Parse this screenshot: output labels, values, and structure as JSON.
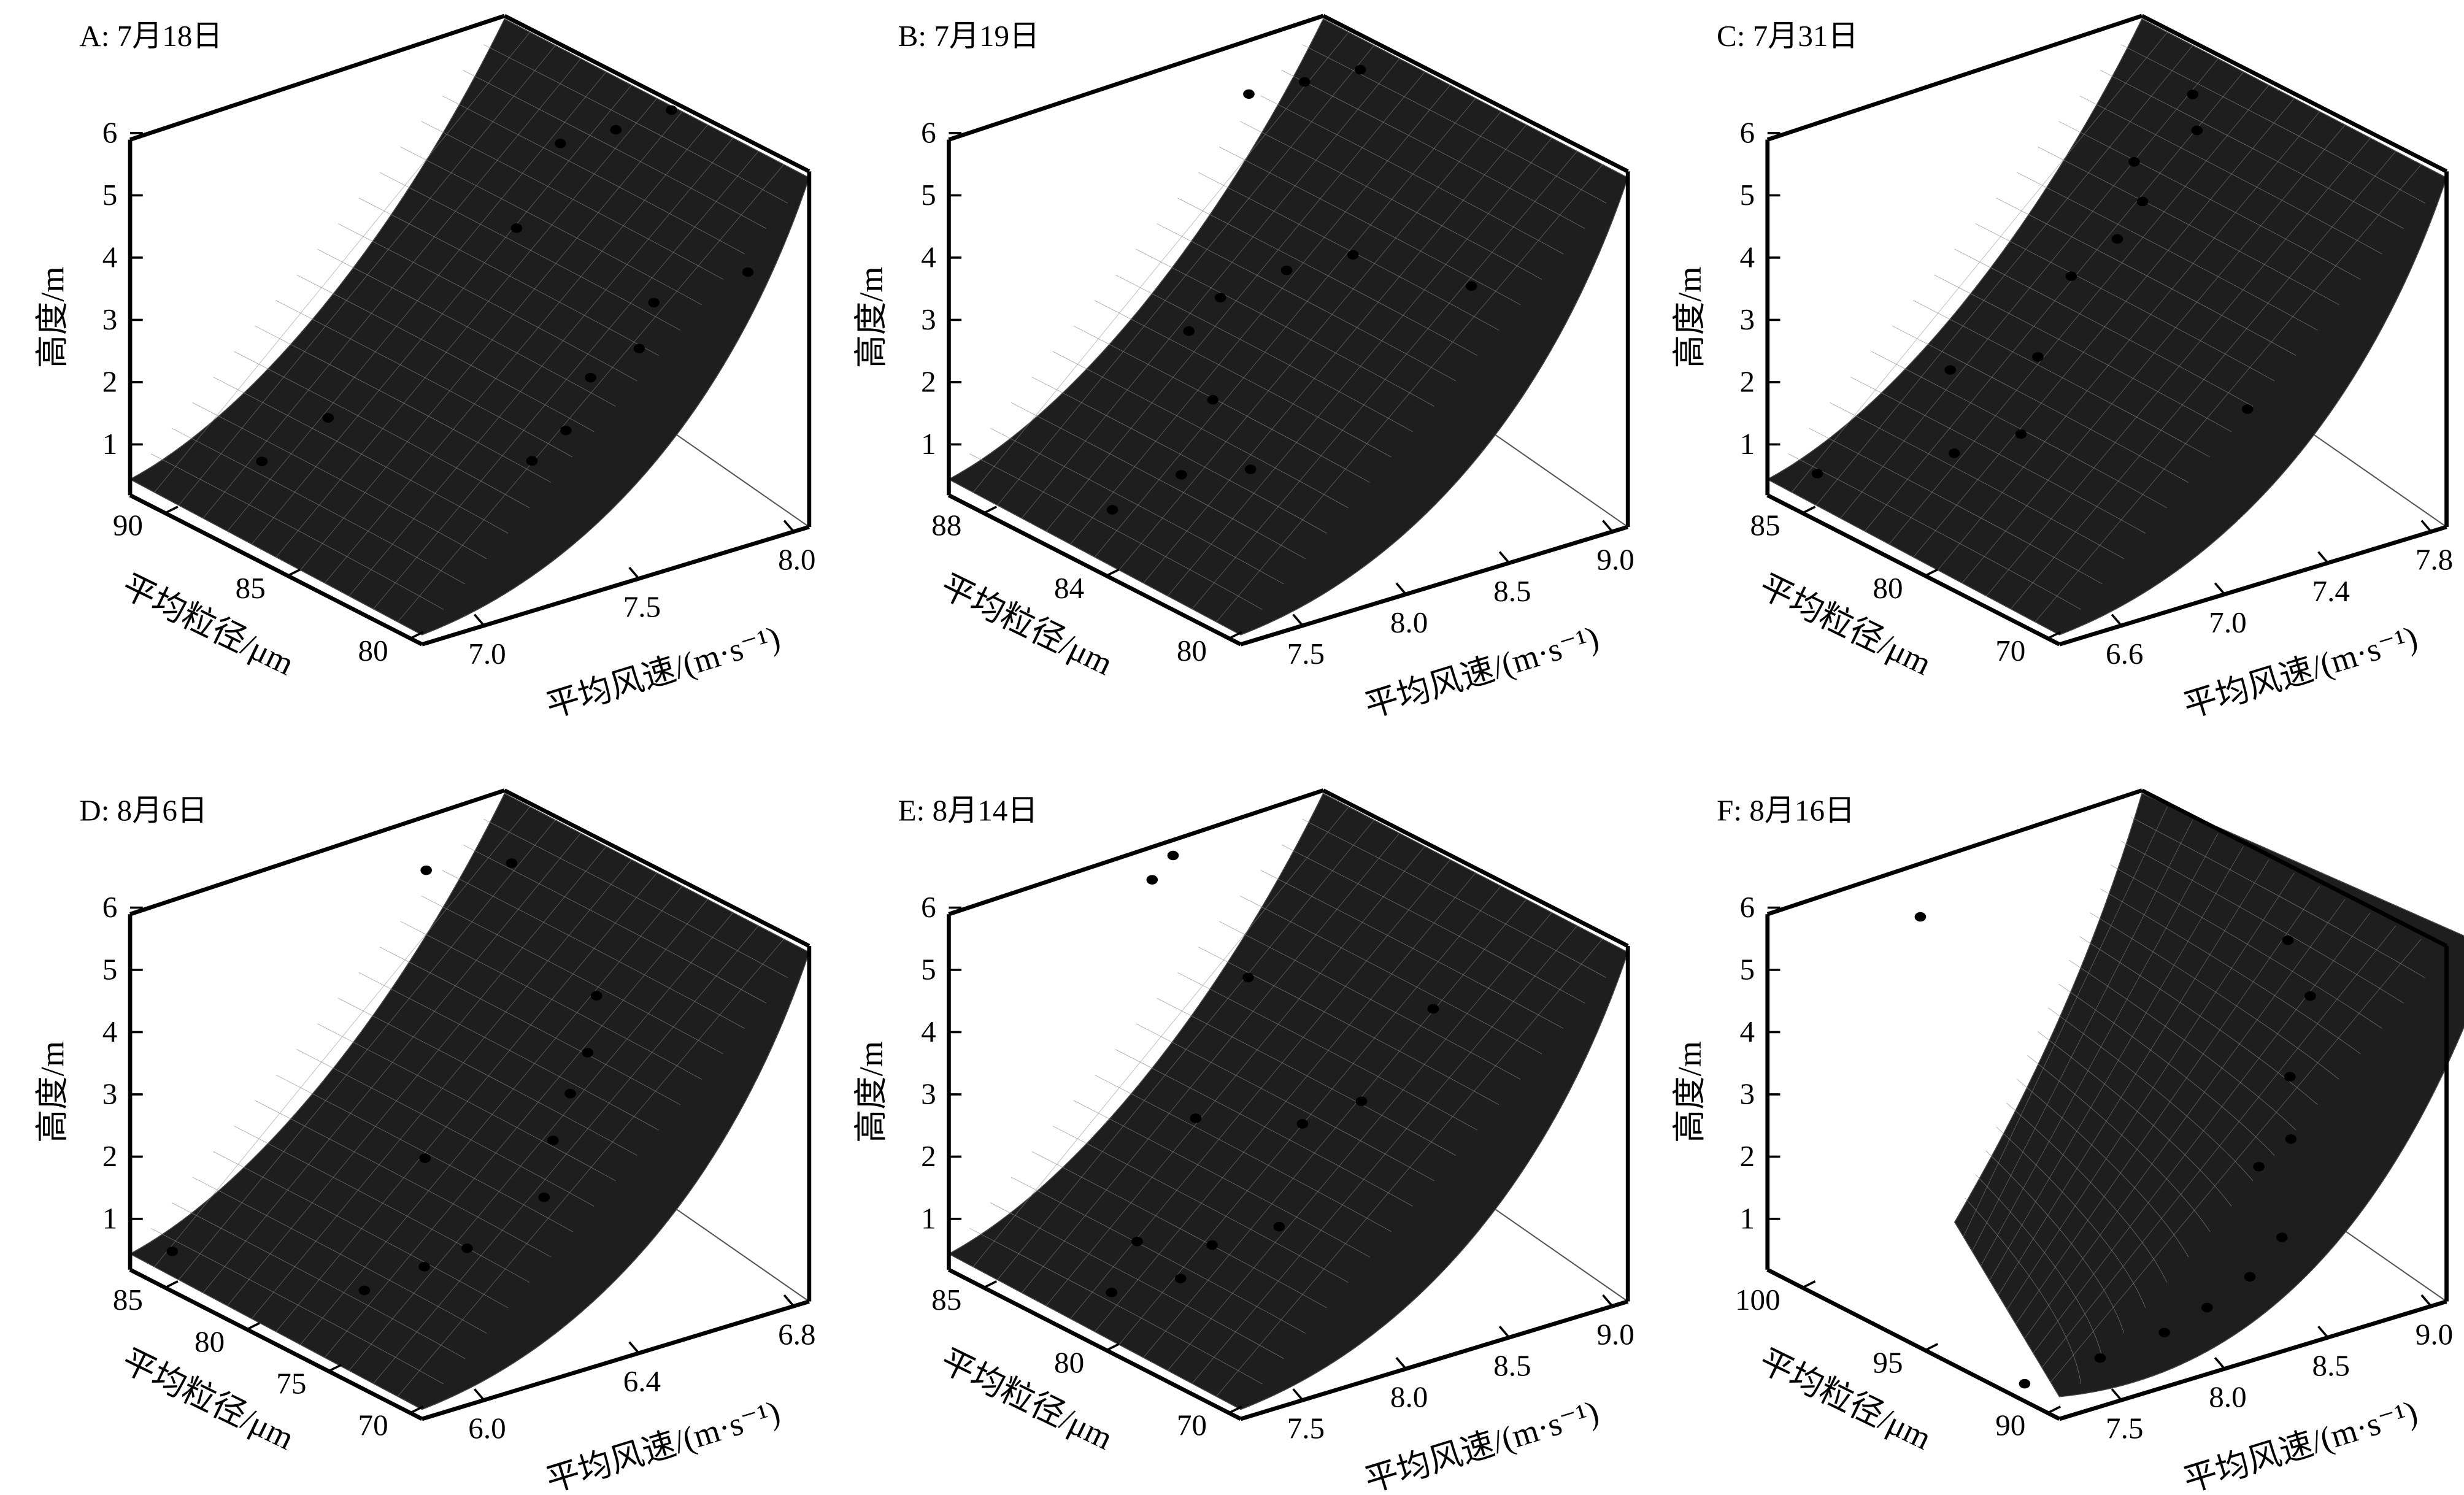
{
  "chart_data": [
    {
      "type": "surface3d",
      "title": "A: 7月18日",
      "zlabel": "高度/m",
      "ylabel": "平均粒径/μm",
      "xlabel": "平均风速/(m·s⁻¹)",
      "z_ticks": [
        "1",
        "2",
        "3",
        "4",
        "5",
        "6"
      ],
      "y_ticks": [
        "90",
        "85",
        "80"
      ],
      "x_ticks": [
        "7.0",
        "7.5",
        "8.0"
      ],
      "zlim": [
        0.3,
        6.3
      ],
      "points": [
        {
          "x": 7.1,
          "y": 89.0,
          "z": 0.8
        },
        {
          "x": 7.25,
          "y": 88.0,
          "z": 1.5
        },
        {
          "x": 7.65,
          "y": 84.2,
          "z": 0.9
        },
        {
          "x": 7.75,
          "y": 84.0,
          "z": 1.3
        },
        {
          "x": 7.85,
          "y": 84.2,
          "z": 2.0
        },
        {
          "x": 7.7,
          "y": 85.5,
          "z": 4.5
        },
        {
          "x": 7.85,
          "y": 85.5,
          "z": 5.7
        },
        {
          "x": 8.0,
          "y": 84.0,
          "z": 2.3
        },
        {
          "x": 8.05,
          "y": 84.0,
          "z": 3.0
        },
        {
          "x": 8.0,
          "y": 85.0,
          "z": 5.8
        },
        {
          "x": 8.15,
          "y": 84.5,
          "z": 6.0
        },
        {
          "x": 8.25,
          "y": 82.5,
          "z": 3.5
        }
      ]
    },
    {
      "type": "surface3d",
      "title": "B: 7月19日",
      "zlabel": "高度/m",
      "ylabel": "平均粒径/μm",
      "xlabel": "平均风速/(m·s⁻¹)",
      "z_ticks": [
        "1",
        "2",
        "3",
        "4",
        "5",
        "6"
      ],
      "y_ticks": [
        "88",
        "84",
        "80"
      ],
      "x_ticks": [
        "7.5",
        "8.0",
        "8.5",
        "9.0"
      ],
      "zlim": [
        0.3,
        6.3
      ],
      "points": [
        {
          "x": 7.7,
          "y": 86.0,
          "z": 0.3
        },
        {
          "x": 7.9,
          "y": 85.0,
          "z": 0.9
        },
        {
          "x": 8.1,
          "y": 84.0,
          "z": 1.0
        },
        {
          "x": 8.05,
          "y": 85.0,
          "z": 2.0
        },
        {
          "x": 8.0,
          "y": 85.5,
          "z": 3.1
        },
        {
          "x": 8.15,
          "y": 85.5,
          "z": 3.5
        },
        {
          "x": 8.4,
          "y": 85.0,
          "z": 3.8
        },
        {
          "x": 8.65,
          "y": 84.5,
          "z": 3.9
        },
        {
          "x": 8.95,
          "y": 82.5,
          "z": 3.5
        },
        {
          "x": 8.35,
          "y": 86.0,
          "z": 6.6
        },
        {
          "x": 8.55,
          "y": 85.5,
          "z": 6.7
        },
        {
          "x": 8.75,
          "y": 85.0,
          "z": 6.8
        }
      ]
    },
    {
      "type": "surface3d",
      "title": "C: 7月31日",
      "zlabel": "高度/m",
      "ylabel": "平均粒径/μm",
      "xlabel": "平均风速/(m·s⁻¹)",
      "z_ticks": [
        "1",
        "2",
        "3",
        "4",
        "5",
        "6"
      ],
      "y_ticks": [
        "85",
        "80",
        "70"
      ],
      "x_ticks": [
        "6.6",
        "7.0",
        "7.4",
        "7.8"
      ],
      "zlim": [
        0.3,
        6.3
      ],
      "points": [
        {
          "x": 6.6,
          "y": 86.0,
          "z": 0.4
        },
        {
          "x": 6.95,
          "y": 83.0,
          "z": 0.7
        },
        {
          "x": 7.15,
          "y": 82.0,
          "z": 0.9
        },
        {
          "x": 7.0,
          "y": 84.0,
          "z": 1.9
        },
        {
          "x": 7.25,
          "y": 82.5,
          "z": 2.0
        },
        {
          "x": 7.35,
          "y": 82.0,
          "z": 3.3
        },
        {
          "x": 7.5,
          "y": 81.5,
          "z": 3.8
        },
        {
          "x": 7.6,
          "y": 81.5,
          "z": 4.3
        },
        {
          "x": 7.6,
          "y": 82.0,
          "z": 4.9
        },
        {
          "x": 7.65,
          "y": 76.0,
          "z": 1.5
        },
        {
          "x": 7.85,
          "y": 82.0,
          "z": 5.1
        },
        {
          "x": 7.9,
          "y": 83.0,
          "z": 5.5
        }
      ]
    },
    {
      "type": "surface3d",
      "title": "D: 8月6日",
      "zlabel": "高度/m",
      "ylabel": "平均粒径/μm",
      "xlabel": "平均风速/(m·s⁻¹)",
      "z_ticks": [
        "1",
        "2",
        "3",
        "4",
        "5",
        "6"
      ],
      "y_ticks": [
        "85",
        "80",
        "75",
        "70"
      ],
      "x_ticks": [
        "6.0",
        "6.4",
        "6.8"
      ],
      "zlim": [
        0.3,
        6.3
      ],
      "points": [
        {
          "x": 5.9,
          "y": 85.5,
          "z": 0.5
        },
        {
          "x": 6.15,
          "y": 79.0,
          "z": 0.3
        },
        {
          "x": 6.3,
          "y": 78.5,
          "z": 0.5
        },
        {
          "x": 6.4,
          "y": 78.0,
          "z": 0.7
        },
        {
          "x": 6.35,
          "y": 79.5,
          "z": 2.1
        },
        {
          "x": 6.55,
          "y": 76.5,
          "z": 1.5
        },
        {
          "x": 6.6,
          "y": 77.0,
          "z": 2.3
        },
        {
          "x": 6.65,
          "y": 77.0,
          "z": 3.0
        },
        {
          "x": 6.7,
          "y": 77.0,
          "z": 3.6
        },
        {
          "x": 6.75,
          "y": 77.5,
          "z": 4.4
        },
        {
          "x": 6.45,
          "y": 81.5,
          "z": 6.5
        },
        {
          "x": 6.65,
          "y": 80.5,
          "z": 6.4
        }
      ]
    },
    {
      "type": "surface3d",
      "title": "E: 8月14日",
      "zlabel": "高度/m",
      "ylabel": "平均粒径/μm",
      "xlabel": "平均风速/(m·s⁻¹)",
      "z_ticks": [
        "1",
        "2",
        "3",
        "4",
        "5",
        "6"
      ],
      "y_ticks": [
        "85",
        "80",
        "70"
      ],
      "x_ticks": [
        "7.5",
        "8.0",
        "8.5",
        "9.0"
      ],
      "zlim": [
        0.3,
        6.3
      ],
      "points": [
        {
          "x": 7.65,
          "y": 80.5,
          "z": 0.3
        },
        {
          "x": 7.9,
          "y": 79.5,
          "z": 0.4
        },
        {
          "x": 7.85,
          "y": 81.5,
          "z": 0.8
        },
        {
          "x": 8.05,
          "y": 79.5,
          "z": 0.8
        },
        {
          "x": 8.25,
          "y": 78.0,
          "z": 1.1
        },
        {
          "x": 8.05,
          "y": 80.5,
          "z": 2.8
        },
        {
          "x": 8.4,
          "y": 78.5,
          "z": 2.6
        },
        {
          "x": 8.6,
          "y": 77.5,
          "z": 2.9
        },
        {
          "x": 8.9,
          "y": 77.0,
          "z": 4.2
        },
        {
          "x": 8.3,
          "y": 80.5,
          "z": 4.9
        },
        {
          "x": 8.0,
          "y": 82.5,
          "z": 6.6
        },
        {
          "x": 8.1,
          "y": 82.5,
          "z": 6.9
        }
      ]
    },
    {
      "type": "surface3d",
      "title": "F: 8月16日",
      "zlabel": "高度/m",
      "ylabel": "平均粒径/μm",
      "xlabel": "平均风速/(m·s⁻¹)",
      "z_ticks": [
        "1",
        "2",
        "3",
        "4",
        "5",
        "6"
      ],
      "y_ticks": [
        "100",
        "95",
        "90"
      ],
      "x_ticks": [
        "7.5",
        "8.0",
        "8.5",
        "9.0"
      ],
      "zlim": [
        0.3,
        6.3
      ],
      "points": [
        {
          "x": 7.4,
          "y": 90.5,
          "z": 0.3
        },
        {
          "x": 7.7,
          "y": 90.0,
          "z": 0.5
        },
        {
          "x": 8.0,
          "y": 90.0,
          "z": 0.6
        },
        {
          "x": 8.2,
          "y": 90.0,
          "z": 0.8
        },
        {
          "x": 8.4,
          "y": 90.0,
          "z": 1.1
        },
        {
          "x": 8.55,
          "y": 90.0,
          "z": 1.6
        },
        {
          "x": 8.55,
          "y": 91.0,
          "z": 2.6
        },
        {
          "x": 8.7,
          "y": 91.0,
          "z": 2.9
        },
        {
          "x": 8.75,
          "y": 91.5,
          "z": 3.8
        },
        {
          "x": 8.9,
          "y": 92.0,
          "z": 4.9
        },
        {
          "x": 8.85,
          "y": 92.5,
          "z": 5.8
        },
        {
          "x": 7.6,
          "y": 97.0,
          "z": 6.7
        }
      ]
    }
  ]
}
